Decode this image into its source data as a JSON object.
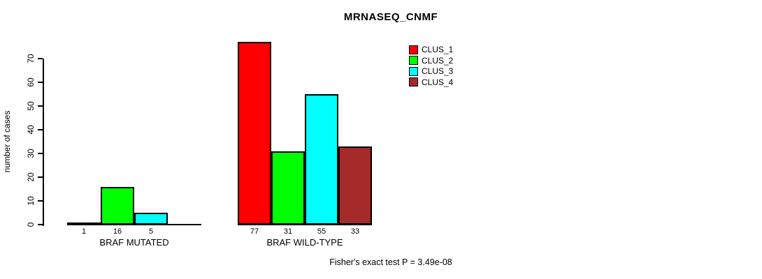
{
  "chart_data": {
    "type": "bar",
    "title": "MRNASEQ_CNMF",
    "xlabel": "",
    "ylabel": "number of cases",
    "ylim": [
      0,
      70
    ],
    "yticks": [
      0,
      10,
      20,
      30,
      40,
      50,
      60,
      70
    ],
    "categories": [
      "BRAF MUTATED",
      "BRAF WILD-TYPE"
    ],
    "series": [
      {
        "name": "CLUS_1",
        "color": "#FF0000",
        "values": [
          1,
          77
        ]
      },
      {
        "name": "CLUS_2",
        "color": "#00FF00",
        "values": [
          16,
          31
        ]
      },
      {
        "name": "CLUS_3",
        "color": "#00FFFF",
        "values": [
          5,
          55
        ]
      },
      {
        "name": "CLUS_4",
        "color": "#A52A2A",
        "values": [
          0,
          33
        ]
      }
    ],
    "bar_value_labels": [
      [
        "1",
        "16",
        "5",
        ""
      ],
      [
        "77",
        "31",
        "55",
        "33"
      ]
    ],
    "legend_position": "top-right",
    "grid": false,
    "annotation": "Fisher's exact test P = 3.49e-08"
  },
  "legend": {
    "items": [
      {
        "label": "CLUS_1",
        "color": "#FF0000"
      },
      {
        "label": "CLUS_2",
        "color": "#00FF00"
      },
      {
        "label": "CLUS_3",
        "color": "#00FFFF"
      },
      {
        "label": "CLUS_4",
        "color": "#A52A2A"
      }
    ]
  }
}
